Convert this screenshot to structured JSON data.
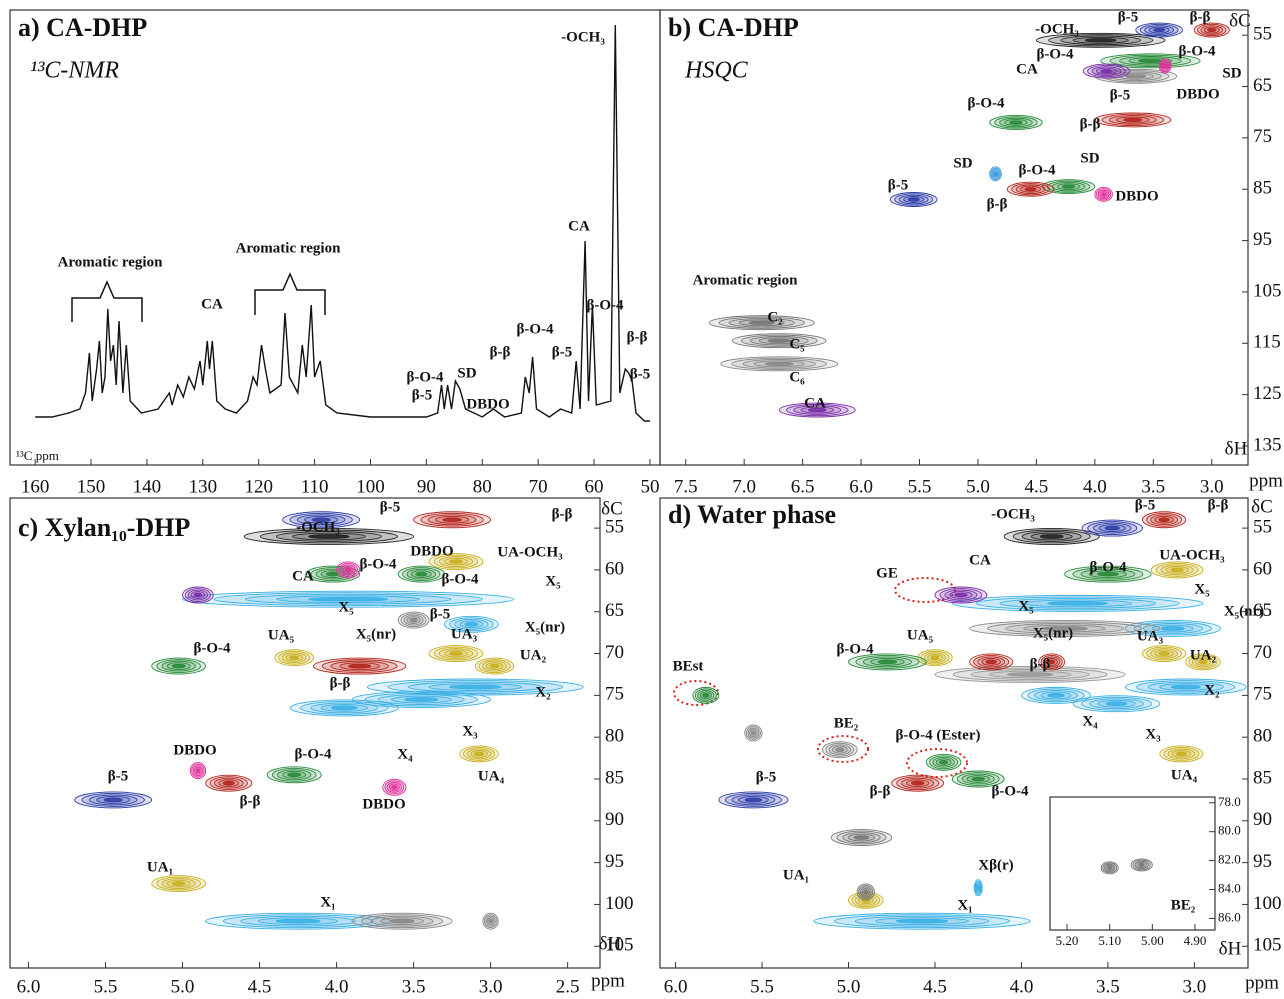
{
  "chart_data": [
    {
      "type": "line",
      "title": "a) CA-DHP",
      "subtitle": "¹³C-NMR",
      "xlabel": "¹³C ppm",
      "color": "#111111",
      "xlim": [
        164.5,
        48.2
      ],
      "xticks": [
        160,
        150,
        140,
        130,
        120,
        110,
        100,
        90,
        80,
        70,
        60,
        50
      ],
      "ylim": [
        0,
        100
      ],
      "x": [
        160,
        157,
        154,
        152,
        151,
        150.3,
        149.8,
        149,
        148.5,
        148,
        147.5,
        147,
        146.5,
        146,
        145.5,
        145,
        144.3,
        143.7,
        143,
        141,
        138,
        136,
        135.5,
        134.5,
        133.5,
        132.5,
        131.5,
        130.5,
        130,
        129.2,
        128.8,
        128.3,
        127.5,
        126,
        124,
        122,
        121,
        120.3,
        119.5,
        118.8,
        118,
        116,
        115.3,
        114.5,
        113,
        112.2,
        111.5,
        110.6,
        110,
        109,
        108,
        106,
        100,
        95,
        90,
        88,
        87.3,
        86.8,
        86.2,
        85.5,
        84.8,
        84,
        83,
        80,
        78,
        76,
        73,
        72.3,
        71.6,
        71,
        70.3,
        68,
        66,
        64,
        63.2,
        62.5,
        61.6,
        61,
        60.3,
        59.6,
        57,
        56.2,
        55.4,
        54.4,
        53.8,
        53.2,
        52.5,
        51,
        50
      ],
      "values": [
        2,
        2,
        3,
        4,
        8,
        18,
        6,
        14,
        21,
        8,
        12,
        29,
        16,
        20,
        10,
        26,
        8,
        20,
        6,
        3,
        4,
        8,
        5,
        10,
        7,
        12,
        9,
        16,
        10,
        21,
        14,
        21,
        6,
        4,
        3,
        6,
        12,
        10,
        20,
        14,
        8,
        10,
        28,
        12,
        8,
        20,
        12,
        30,
        12,
        16,
        5,
        3,
        2,
        2,
        2,
        3,
        10,
        4,
        10,
        4,
        11,
        9,
        4,
        2,
        4,
        2,
        3,
        12,
        8,
        17,
        4,
        2,
        4,
        3,
        16,
        4,
        46,
        6,
        30,
        5,
        6,
        100,
        8,
        14,
        13,
        11,
        3,
        1,
        1
      ],
      "annotations": [
        "Aromatic region",
        "Aromatic region",
        "CA",
        "-OCH₃",
        "CA",
        "β-O-4",
        "β-O-4",
        "β-β",
        "β-5",
        "β-β",
        "β-5",
        "β-O-4",
        "β-5",
        "SD",
        "DBDO"
      ]
    },
    {
      "type": "contour",
      "title": "b) CA-DHP",
      "subtitle": "HSQC",
      "xlabel": "δH",
      "ylabel": "δC",
      "xunit": "ppm",
      "xlim": [
        7.72,
        2.69
      ],
      "ylim": [
        50.1,
        138.7
      ],
      "xticks": [
        7.5,
        {
          "value": 7,
          "label": "7.0"
        },
        6.5,
        {
          "value": 6,
          "label": "6.0"
        },
        5.5,
        {
          "value": 5,
          "label": "5.0"
        },
        4.5,
        {
          "value": 4,
          "label": "4.0"
        },
        3.5,
        {
          "value": 3,
          "label": "3.0"
        }
      ],
      "yticks": [
        55,
        65,
        75,
        85,
        95,
        105,
        115,
        125,
        135
      ],
      "peaks": [
        {
          "x": [
            4.5,
            3.4
          ],
          "y": 56,
          "color": "#222222"
        },
        {
          "x": [
            3.65,
            3.25
          ],
          "y": 54,
          "color": "#2e3fa8"
        },
        {
          "x": [
            3.15,
            2.85
          ],
          "y": 54,
          "color": "#b3261e"
        },
        {
          "x": [
            3.95,
            3.1
          ],
          "y": 60,
          "color": "#2a8a3a"
        },
        {
          "x": [
            4.0,
            3.3
          ],
          "y": 63,
          "color": "#888888"
        },
        {
          "x": [
            4.1,
            3.7
          ],
          "y": 62,
          "color": "#7b2fa8"
        },
        {
          "x": [
            3.45,
            3.35
          ],
          "y": 61,
          "color": "#e0309a"
        },
        {
          "x": [
            4.9,
            4.45
          ],
          "y": 72,
          "color": "#2a8a3a"
        },
        {
          "x": [
            4.0,
            3.35
          ],
          "y": 71.5,
          "color": "#b3261e"
        },
        {
          "x": [
            4.45,
            4.0
          ],
          "y": 84.5,
          "color": "#2a8a3a"
        },
        {
          "x": [
            4.75,
            4.35
          ],
          "y": 85,
          "color": "#b3261e"
        },
        {
          "x": [
            4.0,
            3.85
          ],
          "y": 86,
          "color": "#e0309a"
        },
        {
          "x": [
            5.75,
            5.35
          ],
          "y": 87,
          "color": "#2e3fa8"
        },
        {
          "x": [
            4.9,
            4.8
          ],
          "y": 82,
          "color": "#3a9ad9"
        },
        {
          "x": [
            7.3,
            6.4
          ],
          "y": 111,
          "color": "#777777"
        },
        {
          "x": [
            7.1,
            6.3
          ],
          "y": 114.5,
          "color": "#777777"
        },
        {
          "x": [
            7.2,
            6.2
          ],
          "y": 119,
          "color": "#888888"
        },
        {
          "x": [
            6.7,
            6.05
          ],
          "y": 128,
          "color": "#7b2fa8"
        }
      ],
      "annotations": [
        "-OCH₃",
        "β-5",
        "β-β",
        "β-O-4",
        "β-O-4",
        "CA",
        "SD",
        "DBDO",
        "β-5",
        "β-O-4",
        "β-β",
        "SD",
        "SD",
        "β-O-4",
        "DBDO",
        "β-5",
        "β-β",
        "Aromatic region",
        "C₂",
        "C₅",
        "C₆",
        "CA"
      ]
    },
    {
      "type": "contour",
      "title": "c) Xylan₁₀-DHP",
      "xlabel": "δH",
      "ylabel": "δC",
      "xunit": "ppm",
      "xlim": [
        6.12,
        2.29
      ],
      "ylim": [
        51.4,
        107.6
      ],
      "xticks": [
        {
          "value": 6,
          "label": "6.0"
        },
        5.5,
        {
          "value": 5,
          "label": "5.0"
        },
        4.5,
        {
          "value": 4,
          "label": "4.0"
        },
        3.5,
        {
          "value": 3,
          "label": "3.0"
        },
        2.5
      ],
      "yticks": [
        55,
        60,
        65,
        70,
        75,
        80,
        85,
        90,
        95,
        100,
        105
      ],
      "peaks": [
        {
          "x": [
            4.6,
            3.5
          ],
          "y": 56,
          "color": "#222222"
        },
        {
          "x": [
            4.35,
            3.85
          ],
          "y": 54,
          "color": "#2e3fa8"
        },
        {
          "x": [
            3.5,
            3.0
          ],
          "y": 54,
          "color": "#b3261e"
        },
        {
          "x": [
            4.2,
            3.85
          ],
          "y": 60.5,
          "color": "#2a8a3a"
        },
        {
          "x": [
            4.0,
            3.85
          ],
          "y": 60,
          "color": "#e0309a"
        },
        {
          "x": [
            3.6,
            3.3
          ],
          "y": 60.5,
          "color": "#2a8a3a"
        },
        {
          "x": [
            3.4,
            3.05
          ],
          "y": 59,
          "color": "#c8b01e"
        },
        {
          "x": [
            5.0,
            2.85
          ],
          "y": 63.5,
          "color": "#3bb0e6"
        },
        {
          "x": [
            5.0,
            4.8
          ],
          "y": 63,
          "color": "#7b2fa8"
        },
        {
          "x": [
            3.6,
            3.4
          ],
          "y": 66,
          "color": "#888888"
        },
        {
          "x": [
            3.3,
            2.95
          ],
          "y": 66.5,
          "color": "#3bb0e6"
        },
        {
          "x": [
            5.2,
            4.85
          ],
          "y": 71.5,
          "color": "#2a8a3a"
        },
        {
          "x": [
            4.4,
            4.15
          ],
          "y": 70.5,
          "color": "#c8b01e"
        },
        {
          "x": [
            4.15,
            3.55
          ],
          "y": 71.5,
          "color": "#b3261e"
        },
        {
          "x": [
            3.4,
            3.05
          ],
          "y": 70,
          "color": "#c8b01e"
        },
        {
          "x": [
            3.1,
            2.85
          ],
          "y": 71.5,
          "color": "#c8b01e"
        },
        {
          "x": [
            3.8,
            2.4
          ],
          "y": 74,
          "color": "#3bb0e6"
        },
        {
          "x": [
            3.9,
            3.0
          ],
          "y": 75.5,
          "color": "#3bb0e6"
        },
        {
          "x": [
            4.3,
            3.6
          ],
          "y": 76.5,
          "color": "#3bb0e6"
        },
        {
          "x": [
            3.2,
            2.95
          ],
          "y": 82,
          "color": "#c8b01e"
        },
        {
          "x": [
            4.95,
            4.85
          ],
          "y": 84,
          "color": "#e0309a"
        },
        {
          "x": [
            4.85,
            4.55
          ],
          "y": 85.5,
          "color": "#b3261e"
        },
        {
          "x": [
            4.45,
            4.1
          ],
          "y": 84.5,
          "color": "#2a8a3a"
        },
        {
          "x": [
            3.7,
            3.55
          ],
          "y": 86,
          "color": "#e0309a"
        },
        {
          "x": [
            5.7,
            5.2
          ],
          "y": 87.5,
          "color": "#2e3fa8"
        },
        {
          "x": [
            5.2,
            4.85
          ],
          "y": 97.5,
          "color": "#c8b01e"
        },
        {
          "x": [
            4.85,
            3.65
          ],
          "y": 102,
          "color": "#3bb0e6"
        },
        {
          "x": [
            3.9,
            3.25
          ],
          "y": 102,
          "color": "#888888"
        },
        {
          "x": [
            3.05,
            2.95
          ],
          "y": 102,
          "color": "#888888"
        }
      ],
      "annotations": [
        "β-5",
        "β-β",
        "-OCH₃",
        "β-O-4",
        "DBDO",
        "UA-OCH₃",
        "β-O-4",
        "CA",
        "X₅",
        "X₅",
        "β-5",
        "X₅(nr)",
        "X₅(nr)",
        "UA₃",
        "β-O-4",
        "UA₅",
        "UA₂",
        "β-β",
        "X₂",
        "X₃",
        "X₄",
        "UA₄",
        "DBDO",
        "β-O-4",
        "β-5",
        "β-β",
        "DBDO",
        "UA₁",
        "X₁"
      ]
    },
    {
      "type": "contour",
      "title": "d) Water phase",
      "xlabel": "δH",
      "ylabel": "δC",
      "xunit": "ppm",
      "xlim": [
        6.09,
        2.69
      ],
      "ylim": [
        51.4,
        107.6
      ],
      "xticks": [
        {
          "value": 6,
          "label": "6.0"
        },
        5.5,
        {
          "value": 5,
          "label": "5.0"
        },
        4.5,
        {
          "value": 4,
          "label": "4.0"
        },
        3.5,
        {
          "value": 3,
          "label": "3.0"
        }
      ],
      "yticks": [
        55,
        60,
        65,
        70,
        75,
        80,
        85,
        90,
        95,
        100,
        105
      ],
      "peaks": [
        {
          "x": [
            4.1,
            3.55
          ],
          "y": 56,
          "color": "#222222"
        },
        {
          "x": [
            3.65,
            3.3
          ],
          "y": 55,
          "color": "#2e3fa8"
        },
        {
          "x": [
            3.3,
            3.05
          ],
          "y": 54,
          "color": "#b3261e"
        },
        {
          "x": [
            3.25,
            2.95
          ],
          "y": 60,
          "color": "#c8b01e"
        },
        {
          "x": [
            4.4,
            2.95
          ],
          "y": 64,
          "color": "#3bb0e6"
        },
        {
          "x": [
            4.5,
            4.2
          ],
          "y": 63,
          "color": "#7b2fa8"
        },
        {
          "x": [
            3.75,
            3.25
          ],
          "y": 60.5,
          "color": "#2a8a3a"
        },
        {
          "x": [
            3.4,
            2.85
          ],
          "y": 67,
          "color": "#3bb0e6"
        },
        {
          "x": [
            4.3,
            3.2
          ],
          "y": 67,
          "color": "#888888"
        },
        {
          "x": [
            4.5,
            3.4
          ],
          "y": 72.5,
          "color": "#999999"
        },
        {
          "x": [
            4.6,
            4.4
          ],
          "y": 70.5,
          "color": "#c8b01e"
        },
        {
          "x": [
            5.0,
            4.55
          ],
          "y": 71,
          "color": "#2a8a3a"
        },
        {
          "x": [
            4.3,
            4.05
          ],
          "y": 71,
          "color": "#b3261e"
        },
        {
          "x": [
            3.9,
            3.75
          ],
          "y": 71,
          "color": "#b3261e"
        },
        {
          "x": [
            3.3,
            3.05
          ],
          "y": 70,
          "color": "#c8b01e"
        },
        {
          "x": [
            3.05,
            2.85
          ],
          "y": 71,
          "color": "#c8b01e"
        },
        {
          "x": [
            3.4,
            2.7
          ],
          "y": 74,
          "color": "#3bb0e6"
        },
        {
          "x": [
            3.7,
            3.2
          ],
          "y": 76,
          "color": "#3bb0e6"
        },
        {
          "x": [
            4.0,
            3.6
          ],
          "y": 75,
          "color": "#3bb0e6"
        },
        {
          "x": [
            5.9,
            5.75
          ],
          "y": 75,
          "color": "#2a8a3a"
        },
        {
          "x": [
            5.15,
            4.95
          ],
          "y": 81.5,
          "color": "#888888"
        },
        {
          "x": [
            5.6,
            5.5
          ],
          "y": 79.5,
          "color": "#888888"
        },
        {
          "x": [
            4.55,
            4.35
          ],
          "y": 83,
          "color": "#2a8a3a"
        },
        {
          "x": [
            4.75,
            4.45
          ],
          "y": 85.5,
          "color": "#b3261e"
        },
        {
          "x": [
            4.4,
            4.1
          ],
          "y": 85,
          "color": "#2a8a3a"
        },
        {
          "x": [
            3.2,
            2.95
          ],
          "y": 82,
          "color": "#c8b01e"
        },
        {
          "x": [
            5.75,
            5.35
          ],
          "y": 87.5,
          "color": "#2e3fa8"
        },
        {
          "x": [
            5.1,
            4.75
          ],
          "y": 92,
          "color": "#777777"
        },
        {
          "x": [
            5.0,
            4.8
          ],
          "y": 99.5,
          "color": "#c8b01e"
        },
        {
          "x": [
            4.95,
            4.85
          ],
          "y": 98.5,
          "color": "#777777"
        },
        {
          "x": [
            5.2,
            3.95
          ],
          "y": 102,
          "color": "#3bb0e6"
        },
        {
          "x": [
            4.27,
            4.23
          ],
          "y": 98,
          "color": "#3bb0e6"
        }
      ],
      "annotations": [
        "-OCH₃",
        "β-5",
        "β-β",
        "UA-OCH₃",
        "CA",
        "β-O-4",
        "GE",
        "X₅",
        "X₅",
        "X₅(nr)",
        "X₅(nr)",
        "UA₅",
        "UA₃",
        "β-O-4",
        "UA₂",
        "β-β",
        "BEst",
        "X₂",
        "X₄",
        "X₃",
        "BE₂",
        "β-O-4 (Ester)",
        "UA₄",
        "β-β",
        "β-O-4",
        "β-5",
        "Xβ(r)",
        "UA₁",
        "X₁"
      ]
    },
    {
      "type": "contour",
      "xlim": [
        5.24,
        4.853
      ],
      "ylim": [
        77.6,
        86.8
      ],
      "xticks": [
        {
          "value": 5.2,
          "label": "5.20"
        },
        {
          "value": 5.1,
          "label": "5.10"
        },
        {
          "value": 5,
          "label": "5.00"
        },
        {
          "value": 4.9,
          "label": "4.90"
        }
      ],
      "yticks": [
        {
          "value": 78,
          "label": "78.0"
        },
        {
          "value": 80,
          "label": "80.0"
        },
        {
          "value": 82,
          "label": "82.0"
        },
        {
          "value": 84,
          "label": "84.0"
        },
        {
          "value": 86,
          "label": "86.0"
        }
      ],
      "peaks": [
        {
          "x": [
            5.12,
            5.08
          ],
          "y": 82.5,
          "color": "#777777"
        },
        {
          "x": [
            5.05,
            5.0
          ],
          "y": 82.3,
          "color": "#777777"
        }
      ],
      "annotations": [
        "BE₂"
      ]
    }
  ]
}
